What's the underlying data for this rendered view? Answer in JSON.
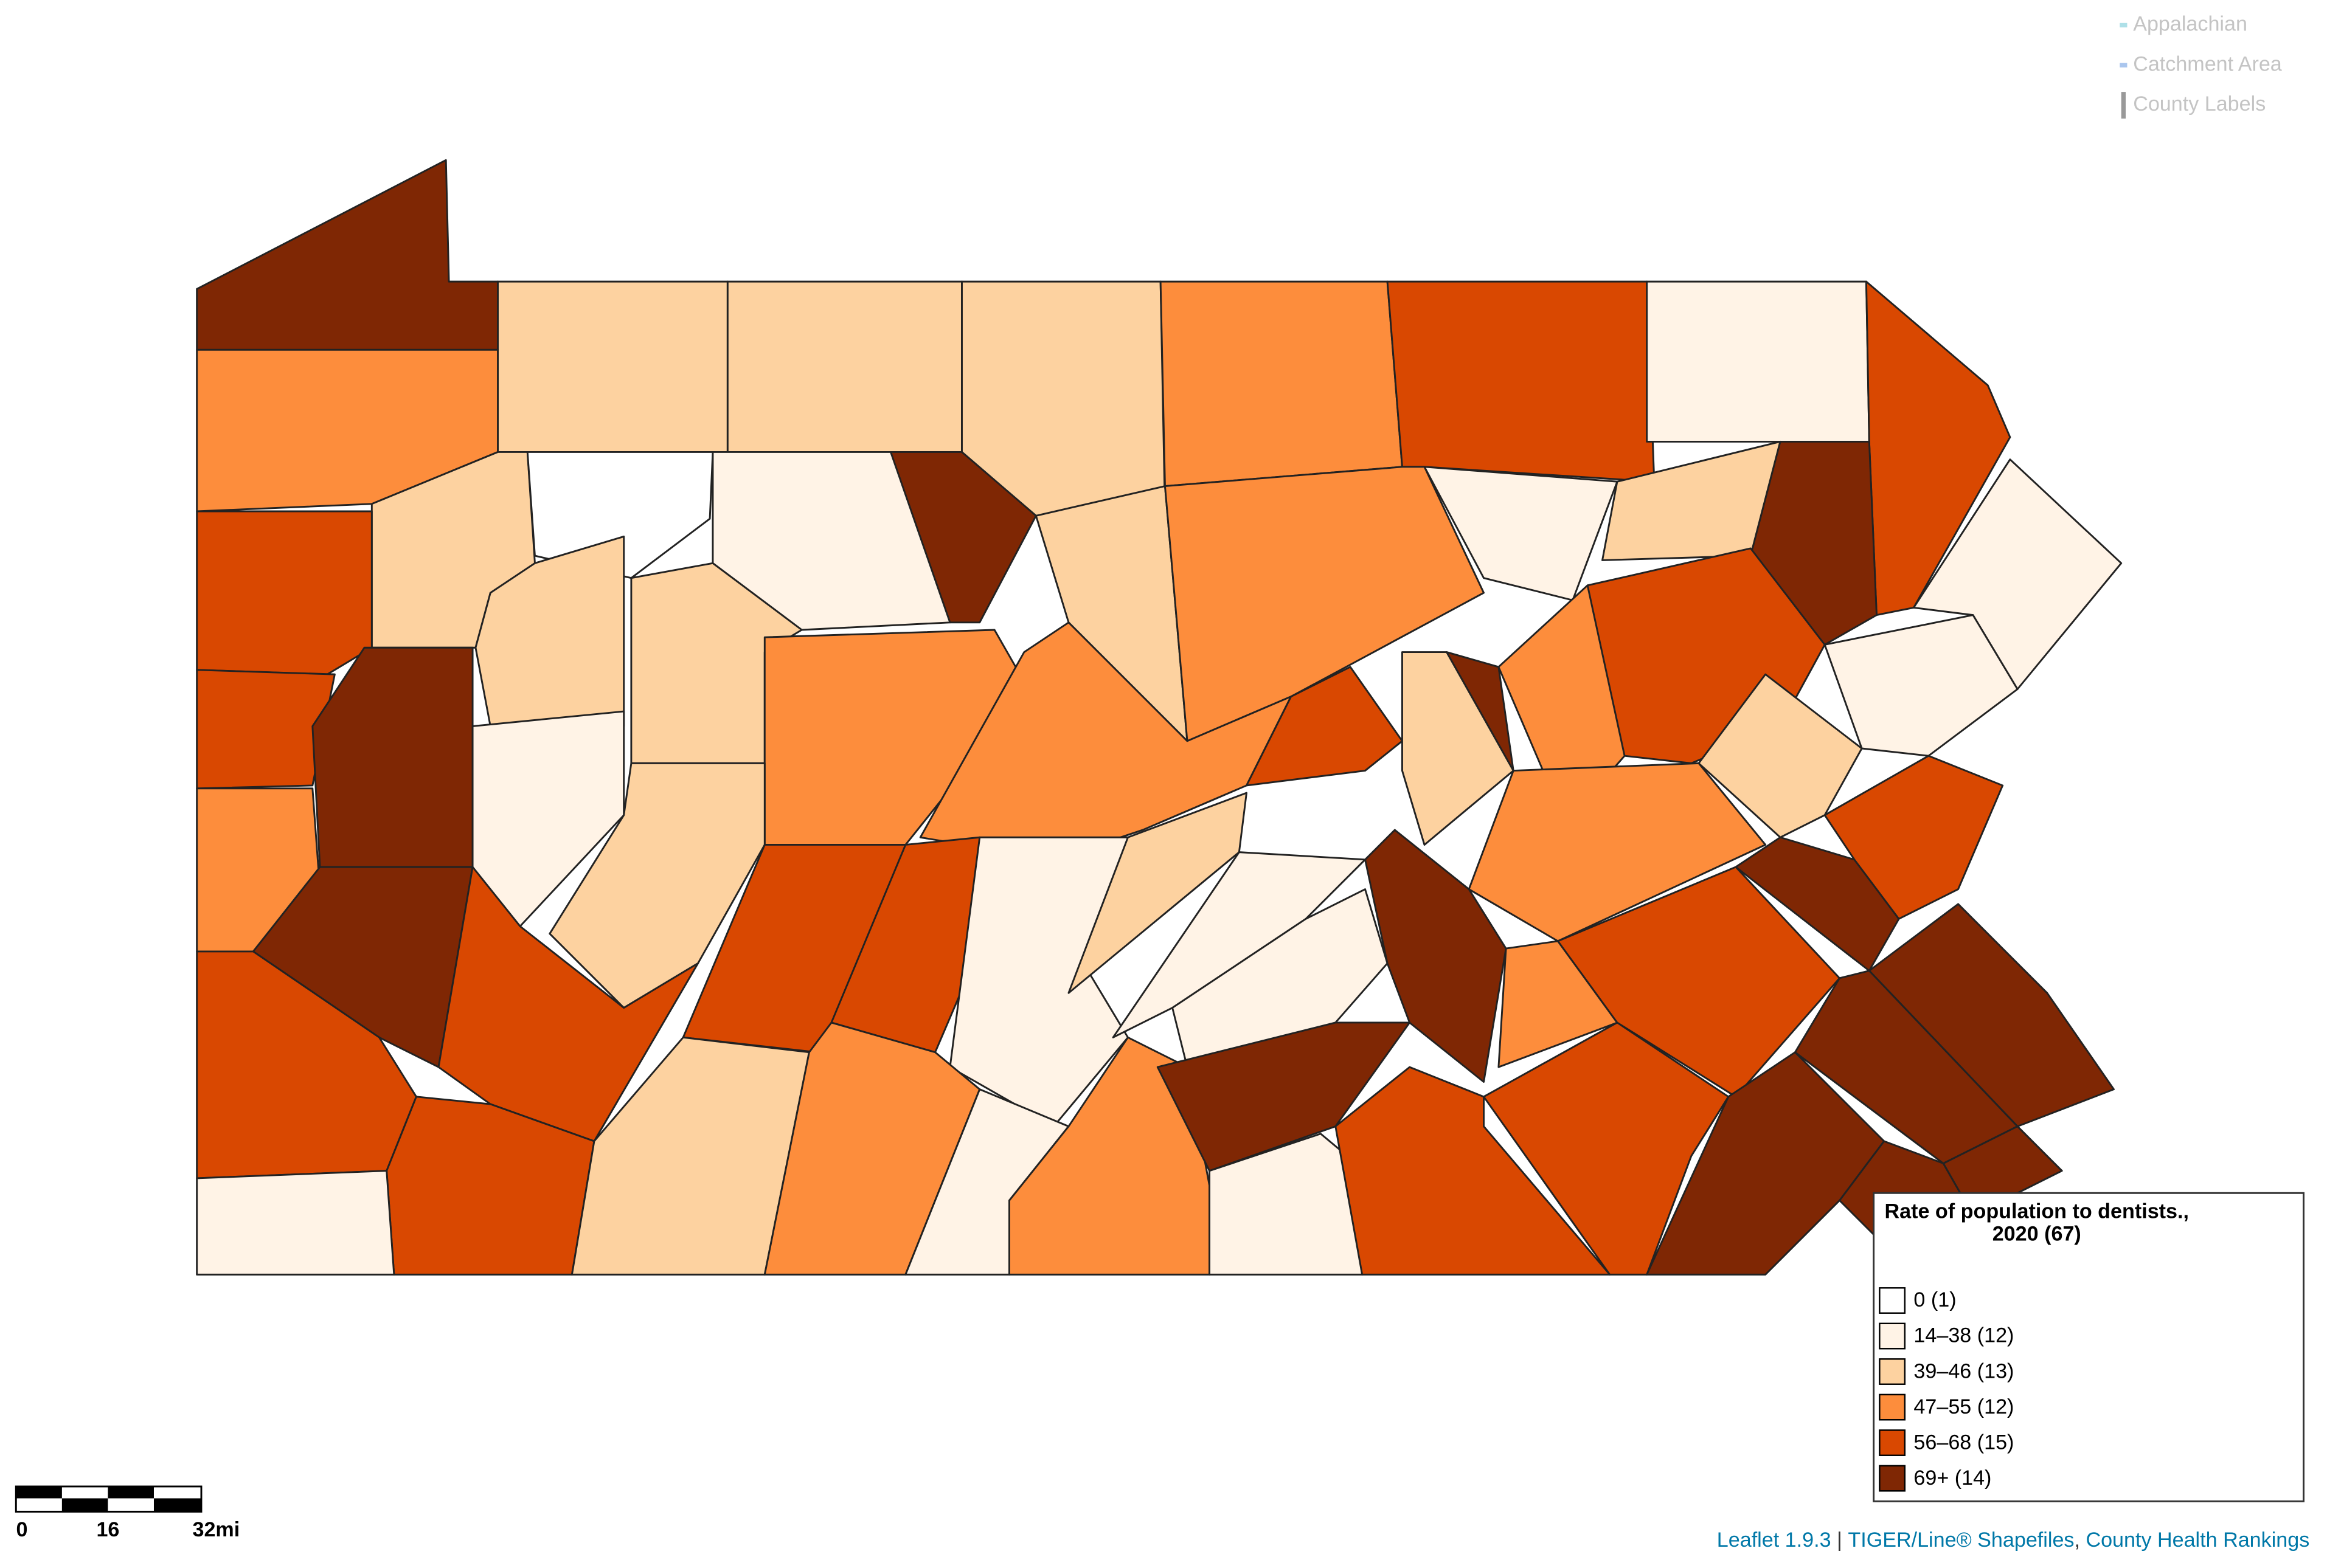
{
  "map": {
    "layers": [
      {
        "label": "Appalachian",
        "color": "#aee0e8"
      },
      {
        "label": "Catchment Area",
        "color": "#aac6ee"
      },
      {
        "label": "County Labels",
        "color": "#999999"
      }
    ],
    "legend": {
      "title": "Rate of population to dentists., 2020 (67)",
      "items": [
        {
          "label": "0 (1)",
          "color": "#ffffff"
        },
        {
          "label": "14–38 (12)",
          "color": "#fff3e6"
        },
        {
          "label": "39–46 (13)",
          "color": "#fdd2a0"
        },
        {
          "label": "47–55 (12)",
          "color": "#fd8d3c"
        },
        {
          "label": "56–68 (15)",
          "color": "#d94801"
        },
        {
          "label": "69+ (14)",
          "color": "#7f2704"
        }
      ]
    },
    "scale": [
      "0",
      "16",
      "32mi"
    ],
    "attribution": [
      "Leaflet 1.9.3",
      " | ",
      "TIGER/Line® Shapefiles",
      ", ",
      "County Health Rankings"
    ]
  }
}
